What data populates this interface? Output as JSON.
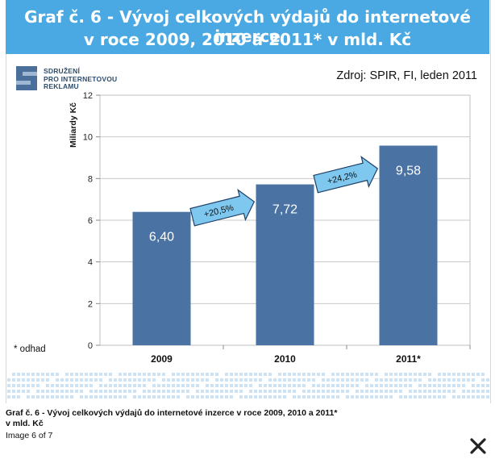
{
  "header": {
    "title_line1": "Graf č. 6 - Vývoj celkových výdajů do internetové inzerce",
    "title_line2": "v roce 2009, 2010 a 2011* v mld. Kč"
  },
  "logo": {
    "line1": "SDRUŽENÍ",
    "line2": "PRO INTERNETOVOU",
    "line3": "REKLAMU"
  },
  "source": "Zdroj: SPIR, FI, leden 2011",
  "footnote": "* odhad",
  "caption": "Graf č. 6 - Vývoj celkových výdajů do internetové inzerce v roce 2009, 2010 a 2011* v mld. Kč",
  "counter": "Image 6 of 7",
  "colors": {
    "title_bg": "#4aa9e2",
    "bar": "#4a72a2",
    "arrow": "#7ec8f0",
    "dots": "#cde3f3"
  },
  "chart_data": {
    "type": "bar",
    "categories": [
      "2009",
      "2010",
      "2011*"
    ],
    "values": [
      6.4,
      7.72,
      9.58
    ],
    "value_labels": [
      "6,40",
      "7,72",
      "9,58"
    ],
    "ylabel": "Miliardy Kč",
    "ylim": [
      0,
      12
    ],
    "yticks": [
      0,
      2,
      4,
      6,
      8,
      10,
      12
    ],
    "grid": true,
    "annotations": [
      {
        "from": "2009",
        "to": "2010",
        "text": "+20,5%"
      },
      {
        "from": "2010",
        "to": "2011*",
        "text": "+24,2%"
      }
    ]
  }
}
